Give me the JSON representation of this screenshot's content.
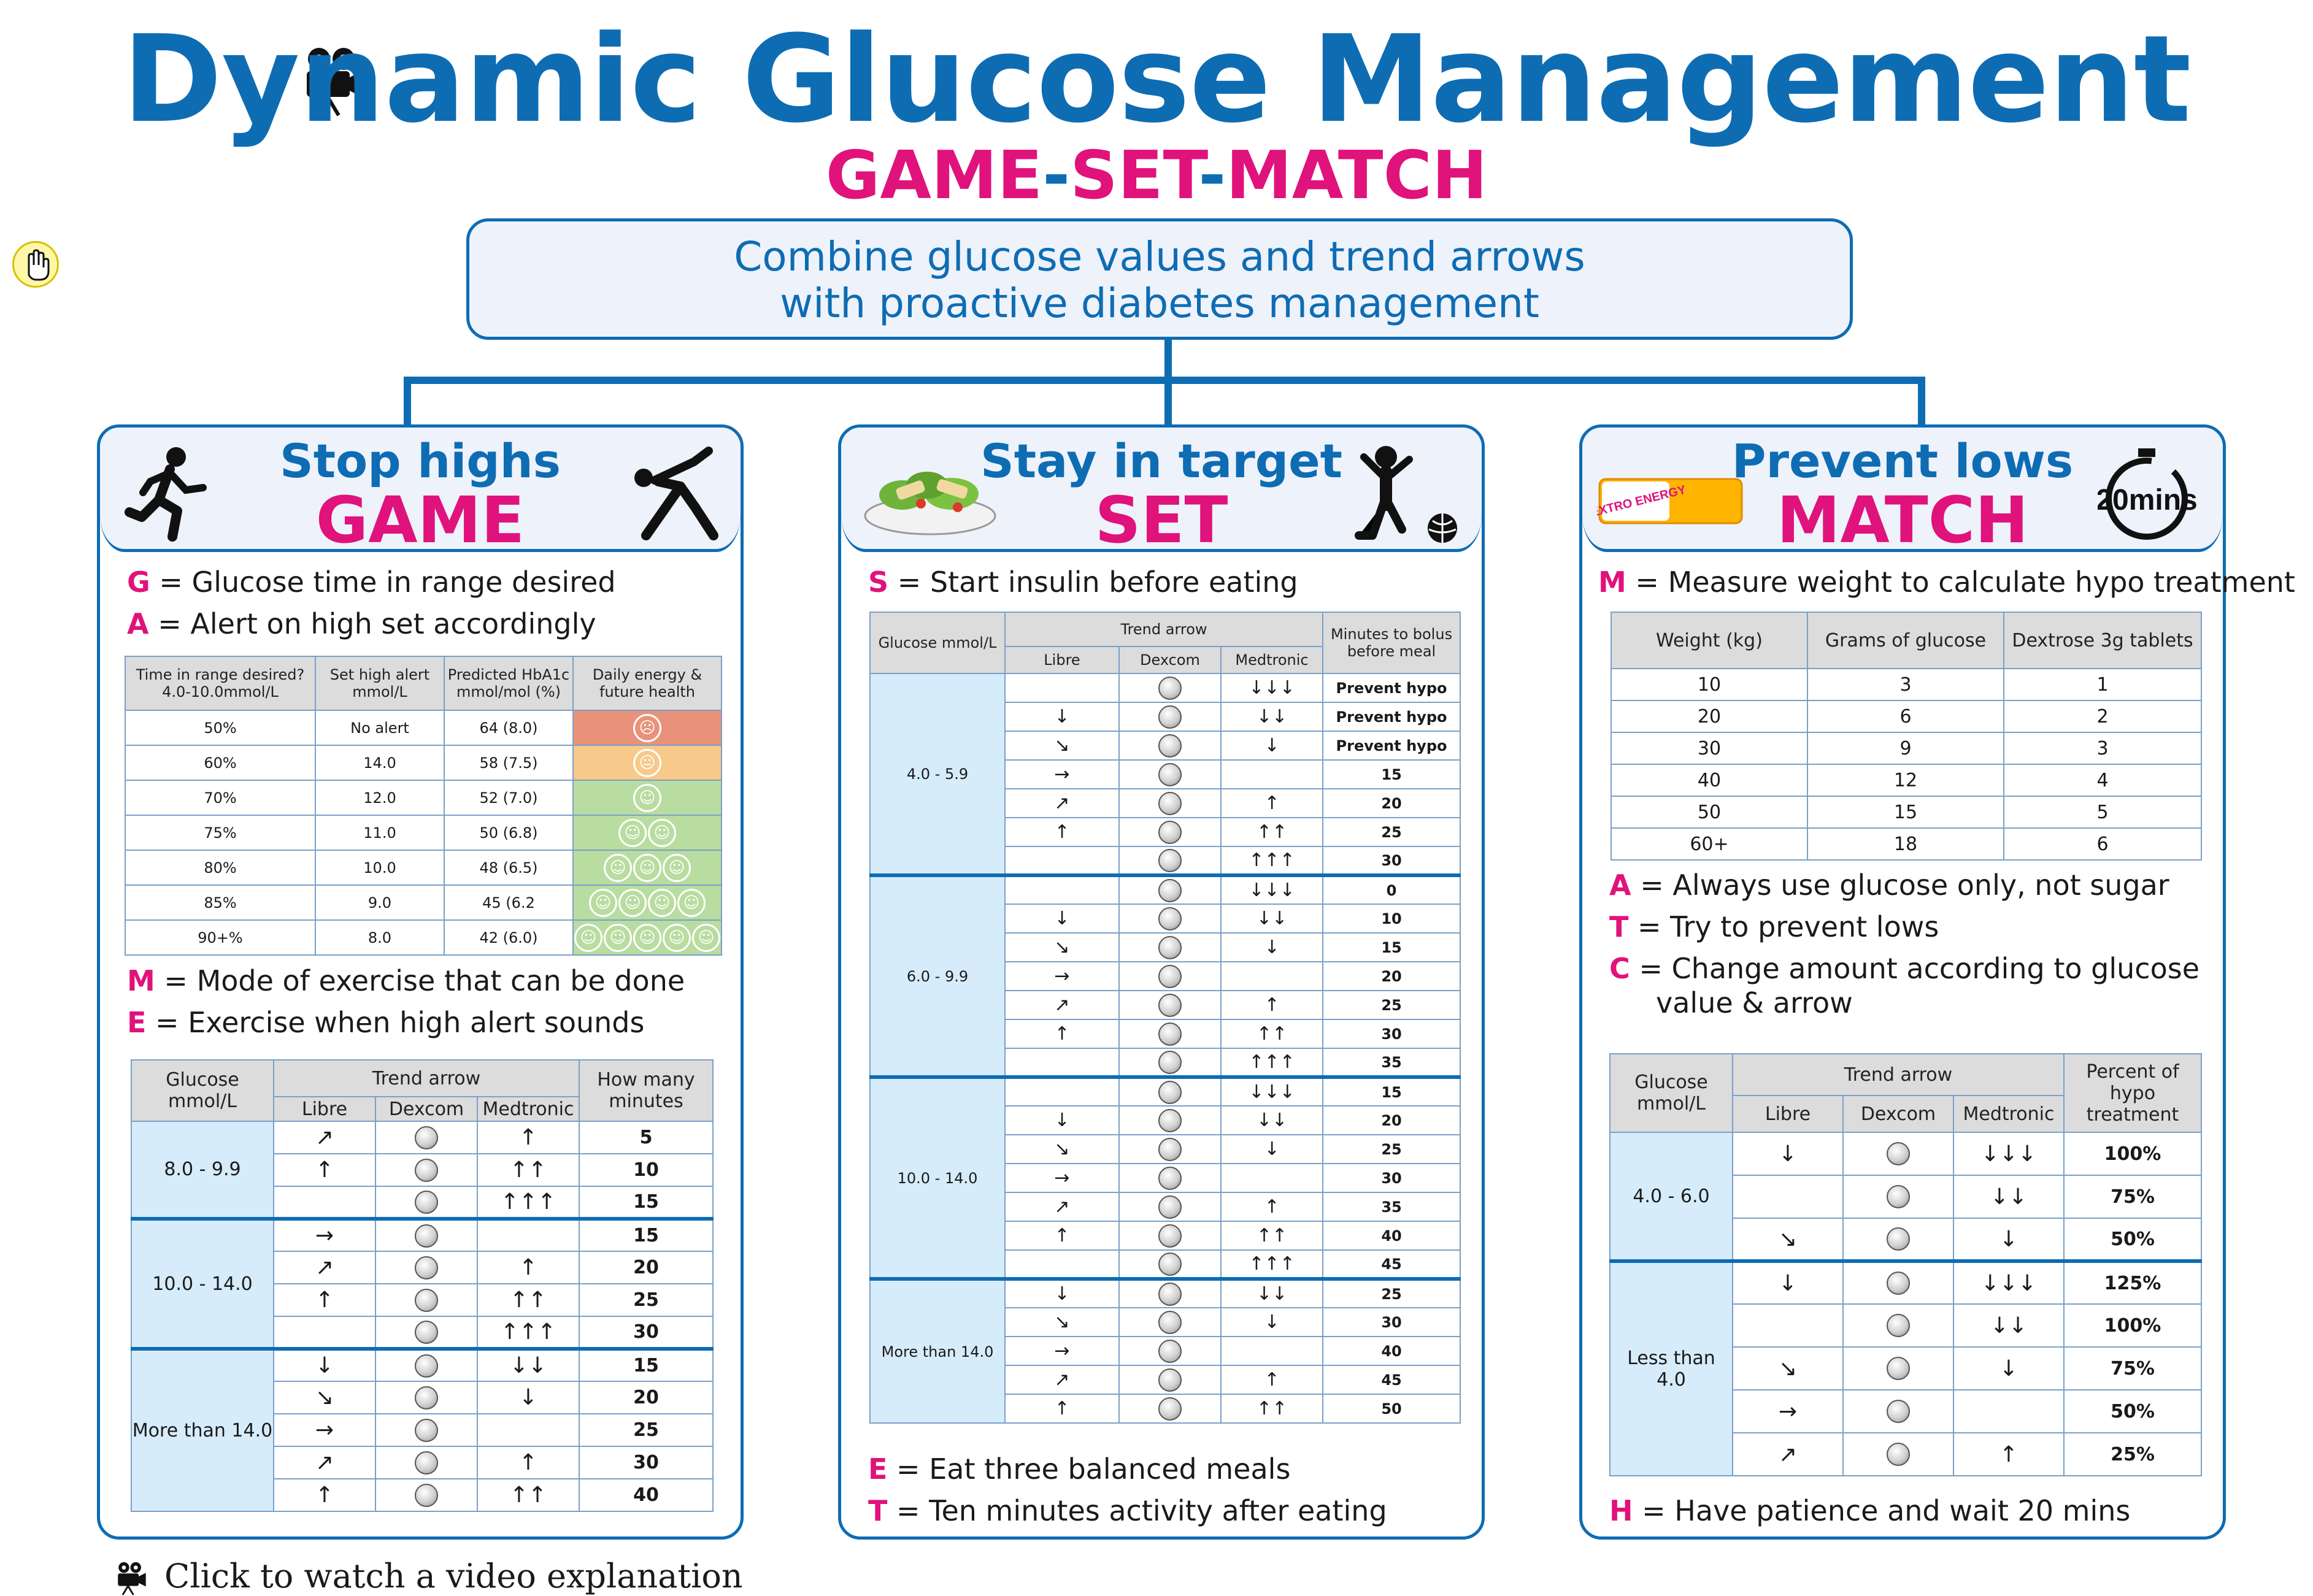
{
  "title": "Dynamic Glucose Management",
  "subtitle": {
    "game": "GAME",
    "set": "SET",
    "match": "MATCH",
    "dash": "-"
  },
  "intro": {
    "line1": "Combine glucose values and trend arrows",
    "line2": "with proactive diabetes management"
  },
  "icons": {
    "title_camera": "video-camera-icon",
    "cursor": "hand-cursor-icon",
    "runner": "running-person-icon",
    "stretch": "exercising-person-icon",
    "salad": "salad-plate-icon",
    "ball": "person-with-ball-icon",
    "dextro": "dextro-energy-pack-icon",
    "timer": "stopwatch-20-mins-icon",
    "footer_camera": "video-camera-icon",
    "dial": "sensor-dial-icon",
    "smiley": "smiley-face-icon"
  },
  "colors": {
    "blue": "#0e6cb3",
    "pink": "#e0127b",
    "cell_blue": "#d6ecfb",
    "header_grey": "#dcdcdc",
    "red": "#e8927a",
    "orange": "#f7c98a",
    "green": "#b9dca0"
  },
  "game": {
    "heading1": "Stop highs",
    "heading2": "GAME",
    "g": {
      "k": "G",
      "text": " = Glucose time in range desired"
    },
    "a": {
      "k": "A",
      "text": " = Alert on high set accordingly"
    },
    "m": {
      "k": "M",
      "text": " = Mode of exercise that can be done"
    },
    "e": {
      "k": "E",
      "text": "  = Exercise when high alert sounds"
    },
    "table1": {
      "headers": [
        "Time in range desired? 4.0-10.0mmol/L",
        "Set high alert mmol/L",
        "Predicted HbA1c mmol/mol (%)",
        "Daily energy & future health"
      ],
      "rows": [
        [
          "50%",
          "No alert",
          "64 (8.0)"
        ],
        [
          "60%",
          "14.0",
          "58 (7.5)"
        ],
        [
          "70%",
          "12.0",
          "52 (7.0)"
        ],
        [
          "75%",
          "11.0",
          "50 (6.8)"
        ],
        [
          "80%",
          "10.0",
          "48 (6.5)"
        ],
        [
          "85%",
          "9.0",
          "45 (6.2"
        ],
        [
          "90+%",
          "8.0",
          "42 (6.0)"
        ]
      ],
      "faces": [
        {
          "count": 1,
          "mood": "sad",
          "color": "#e8927a"
        },
        {
          "count": 1,
          "mood": "neutral",
          "color": "#f7c98a"
        },
        {
          "count": 1,
          "mood": "happy",
          "color": "#b9dca0"
        },
        {
          "count": 2,
          "mood": "happy",
          "color": "#b9dca0"
        },
        {
          "count": 3,
          "mood": "happy",
          "color": "#b9dca0"
        },
        {
          "count": 4,
          "mood": "happy",
          "color": "#b9dca0"
        },
        {
          "count": 5,
          "mood": "happy",
          "color": "#b9dca0"
        }
      ]
    },
    "table2": {
      "h_glucose": "Glucose mmol/L",
      "h_trend": "Trend arrow",
      "h_libre": "Libre",
      "h_dexcom": "Dexcom",
      "h_medtronic": "Medtronic",
      "h_last": "How many minutes",
      "groups": [
        {
          "label": "8.0 - 9.9",
          "rows": [
            [
              "↗",
              "↑",
              "5"
            ],
            [
              "↑",
              "↑↑",
              "10"
            ],
            [
              "",
              "↑↑↑",
              "15"
            ]
          ]
        },
        {
          "label": "10.0 - 14.0",
          "rows": [
            [
              "→",
              "",
              "15"
            ],
            [
              "↗",
              "↑",
              "20"
            ],
            [
              "↑",
              "↑↑",
              "25"
            ],
            [
              "",
              "↑↑↑",
              "30"
            ]
          ]
        },
        {
          "label": "More than 14.0",
          "rows": [
            [
              "↓",
              "↓↓",
              "15"
            ],
            [
              "↘",
              "↓",
              "20"
            ],
            [
              "→",
              "",
              "25"
            ],
            [
              "↗",
              "↑",
              "30"
            ],
            [
              "↑",
              "↑↑",
              "40"
            ]
          ]
        }
      ]
    }
  },
  "set": {
    "heading1": "Stay in target",
    "heading2": "SET",
    "s": {
      "k": "S",
      "text": " = Start insulin before eating"
    },
    "e": {
      "k": "E",
      "text": " = Eat three balanced meals"
    },
    "t": {
      "k": "T",
      "text": " = Ten minutes activity after eating"
    },
    "table": {
      "h_glucose": "Glucose mmol/L",
      "h_trend": "Trend arrow",
      "h_libre": "Libre",
      "h_dexcom": "Dexcom",
      "h_medtronic": "Medtronic",
      "h_last": "Minutes to bolus before meal",
      "groups": [
        {
          "label": "4.0 - 5.9",
          "rows": [
            [
              "",
              "↓↓↓",
              "Prevent hypo"
            ],
            [
              "↓",
              "↓↓",
              "Prevent hypo"
            ],
            [
              "↘",
              "↓",
              "Prevent hypo"
            ],
            [
              "→",
              "",
              "15"
            ],
            [
              "↗",
              "↑",
              "20"
            ],
            [
              "↑",
              "↑↑",
              "25"
            ],
            [
              "",
              "↑↑↑",
              "30"
            ]
          ]
        },
        {
          "label": "6.0 - 9.9",
          "rows": [
            [
              "",
              "↓↓↓",
              "0"
            ],
            [
              "↓",
              "↓↓",
              "10"
            ],
            [
              "↘",
              "↓",
              "15"
            ],
            [
              "→",
              "",
              "20"
            ],
            [
              "↗",
              "↑",
              "25"
            ],
            [
              "↑",
              "↑↑",
              "30"
            ],
            [
              "",
              "↑↑↑",
              "35"
            ]
          ]
        },
        {
          "label": "10.0 - 14.0",
          "rows": [
            [
              "",
              "↓↓↓",
              "15"
            ],
            [
              "↓",
              "↓↓",
              "20"
            ],
            [
              "↘",
              "↓",
              "25"
            ],
            [
              "→",
              "",
              "30"
            ],
            [
              "↗",
              "↑",
              "35"
            ],
            [
              "↑",
              "↑↑",
              "40"
            ],
            [
              "",
              "↑↑↑",
              "45"
            ]
          ]
        },
        {
          "label": "More than 14.0",
          "rows": [
            [
              "↓",
              "↓↓",
              "25"
            ],
            [
              "↘",
              "↓",
              "30"
            ],
            [
              "→",
              "",
              "40"
            ],
            [
              "↗",
              "↑",
              "45"
            ],
            [
              "↑",
              "↑↑",
              "50"
            ]
          ]
        }
      ]
    }
  },
  "match": {
    "heading1": "Prevent lows",
    "heading2": "MATCH",
    "timer_label": "20mins",
    "dextro_label": "DEXTRO ENERGY",
    "m": {
      "k": "M",
      "text": " = Measure weight to calculate hypo treatment"
    },
    "a": {
      "k": "A",
      "text": " = Always use glucose only, not sugar"
    },
    "t": {
      "k": "T",
      "text": " = Try to prevent lows"
    },
    "c": {
      "k": "C",
      "text": " = Change amount according to glucose"
    },
    "c2": "value & arrow",
    "h": {
      "k": "H",
      "text": " = Have patience and wait 20 mins"
    },
    "table1": {
      "headers": [
        "Weight (kg)",
        "Grams of glucose",
        "Dextrose 3g tablets"
      ],
      "rows": [
        [
          "10",
          "3",
          "1"
        ],
        [
          "20",
          "6",
          "2"
        ],
        [
          "30",
          "9",
          "3"
        ],
        [
          "40",
          "12",
          "4"
        ],
        [
          "50",
          "15",
          "5"
        ],
        [
          "60+",
          "18",
          "6"
        ]
      ]
    },
    "table2": {
      "h_glucose": "Glucose mmol/L",
      "h_trend": "Trend arrow",
      "h_libre": "Libre",
      "h_dexcom": "Dexcom",
      "h_medtronic": "Medtronic",
      "h_last": "Percent of hypo treatment",
      "groups": [
        {
          "label": "4.0 - 6.0",
          "rows": [
            [
              "↓",
              "↓↓↓",
              "100%"
            ],
            [
              "",
              "↓↓",
              "75%"
            ],
            [
              "↘",
              "↓",
              "50%"
            ]
          ]
        },
        {
          "label": "Less than 4.0",
          "rows": [
            [
              "↓",
              "↓↓↓",
              "125%"
            ],
            [
              "",
              "↓↓",
              "100%"
            ],
            [
              "↘",
              "↓",
              "75%"
            ],
            [
              "→",
              "",
              "50%"
            ],
            [
              "↗",
              "↑",
              "25%"
            ]
          ]
        }
      ]
    }
  },
  "footer": {
    "text": "Click to watch a video  explanation"
  }
}
